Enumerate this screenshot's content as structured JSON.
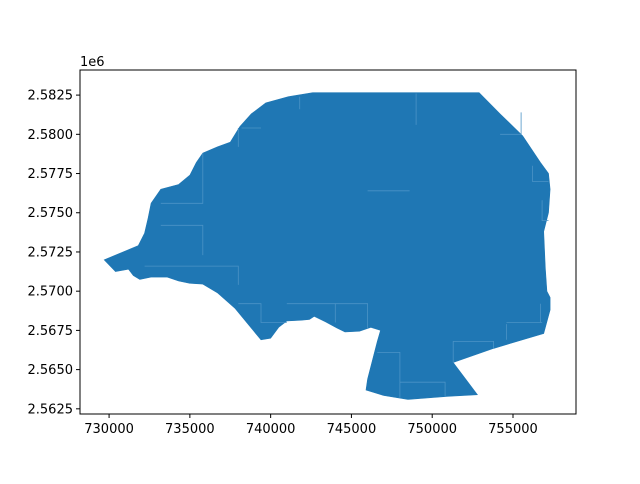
{
  "chart_data": {
    "type": "area",
    "title": "",
    "xlabel": "",
    "ylabel": "",
    "y_offset_label": "1e6",
    "xlim": [
      728200,
      758900
    ],
    "ylim": [
      2562170,
      2584100
    ],
    "xticks": [
      730000,
      735000,
      740000,
      745000,
      750000,
      755000
    ],
    "xtick_labels": [
      "730000",
      "735000",
      "740000",
      "745000",
      "750000",
      "755000"
    ],
    "yticks": [
      2562500,
      2565000,
      2567500,
      2570000,
      2572500,
      2575000,
      2577500,
      2580000,
      2582500
    ],
    "ytick_labels": [
      "2.5625",
      "2.5650",
      "2.5675",
      "2.5700",
      "2.5725",
      "2.5750",
      "2.5775",
      "2.5800",
      "2.5825"
    ],
    "grid": false,
    "fill_color": "#1f77b4",
    "interior_line_color": "#4b93c6",
    "polygon": [
      [
        742600,
        2582650
      ],
      [
        752900,
        2582650
      ],
      [
        754200,
        2581300
      ],
      [
        755600,
        2579900
      ],
      [
        756700,
        2578200
      ],
      [
        757200,
        2577500
      ],
      [
        757300,
        2576500
      ],
      [
        757200,
        2575000
      ],
      [
        756900,
        2573800
      ],
      [
        757000,
        2571500
      ],
      [
        757100,
        2570000
      ],
      [
        757300,
        2569600
      ],
      [
        757300,
        2568800
      ],
      [
        756900,
        2567300
      ],
      [
        753800,
        2566350
      ],
      [
        751300,
        2565450
      ],
      [
        752800,
        2563400
      ],
      [
        751000,
        2563300
      ],
      [
        748500,
        2563100
      ],
      [
        747000,
        2563350
      ],
      [
        745900,
        2563700
      ],
      [
        746000,
        2564400
      ],
      [
        746600,
        2566800
      ],
      [
        746800,
        2567500
      ],
      [
        746200,
        2567700
      ],
      [
        745500,
        2567450
      ],
      [
        744600,
        2567400
      ],
      [
        744100,
        2567650
      ],
      [
        743400,
        2568050
      ],
      [
        742700,
        2568400
      ],
      [
        742400,
        2568200
      ],
      [
        741900,
        2568150
      ],
      [
        741000,
        2568100
      ],
      [
        740500,
        2567700
      ],
      [
        740000,
        2567000
      ],
      [
        739400,
        2566900
      ],
      [
        738600,
        2567900
      ],
      [
        737800,
        2568900
      ],
      [
        736700,
        2569900
      ],
      [
        735800,
        2570450
      ],
      [
        735000,
        2570500
      ],
      [
        734300,
        2570650
      ],
      [
        733600,
        2570900
      ],
      [
        732600,
        2570900
      ],
      [
        731900,
        2570750
      ],
      [
        731500,
        2571000
      ],
      [
        731200,
        2571400
      ],
      [
        730400,
        2571250
      ],
      [
        729700,
        2572000
      ],
      [
        731800,
        2572900
      ],
      [
        732200,
        2573700
      ],
      [
        732400,
        2574600
      ],
      [
        732600,
        2575600
      ],
      [
        733200,
        2576500
      ],
      [
        734300,
        2576800
      ],
      [
        735000,
        2577400
      ],
      [
        735400,
        2578200
      ],
      [
        735800,
        2578800
      ],
      [
        736700,
        2579200
      ],
      [
        737500,
        2579500
      ],
      [
        738100,
        2580500
      ],
      [
        738800,
        2581300
      ],
      [
        739700,
        2582000
      ],
      [
        741100,
        2582400
      ]
    ],
    "interior_lines": [
      [
        [
          735800,
          2578800
        ],
        [
          735800,
          2575600
        ],
        [
          733200,
          2575600
        ]
      ],
      [
        [
          733200,
          2574200
        ],
        [
          735800,
          2574200
        ],
        [
          735800,
          2572300
        ]
      ],
      [
        [
          732200,
          2571600
        ],
        [
          738000,
          2571600
        ],
        [
          738000,
          2570400
        ]
      ],
      [
        [
          738000,
          2569200
        ],
        [
          739400,
          2569200
        ],
        [
          739400,
          2568000
        ],
        [
          741000,
          2568000
        ]
      ],
      [
        [
          741000,
          2569200
        ],
        [
          744000,
          2569200
        ],
        [
          744000,
          2568000
        ]
      ],
      [
        [
          744000,
          2569200
        ],
        [
          746000,
          2569200
        ],
        [
          746000,
          2567600
        ]
      ],
      [
        [
          738000,
          2580400
        ],
        [
          738000,
          2579200
        ]
      ],
      [
        [
          739400,
          2580400
        ],
        [
          738200,
          2580400
        ]
      ],
      [
        [
          741800,
          2582400
        ],
        [
          741800,
          2581600
        ]
      ],
      [
        [
          751300,
          2565450
        ],
        [
          751300,
          2566800
        ],
        [
          753800,
          2566800
        ],
        [
          753800,
          2566350
        ]
      ],
      [
        [
          746600,
          2566100
        ],
        [
          748000,
          2566100
        ],
        [
          748000,
          2563200
        ]
      ],
      [
        [
          748000,
          2564200
        ],
        [
          750800,
          2564200
        ],
        [
          750800,
          2563300
        ]
      ],
      [
        [
          755500,
          2581400
        ],
        [
          755500,
          2580000
        ],
        [
          754200,
          2580000
        ]
      ],
      [
        [
          756200,
          2578000
        ],
        [
          756200,
          2577000
        ],
        [
          757200,
          2577000
        ]
      ],
      [
        [
          756800,
          2575800
        ],
        [
          756800,
          2574500
        ],
        [
          757200,
          2574500
        ]
      ],
      [
        [
          756700,
          2569200
        ],
        [
          756700,
          2568000
        ]
      ],
      [
        [
          754600,
          2568000
        ],
        [
          756800,
          2568000
        ]
      ],
      [
        [
          754600,
          2566900
        ],
        [
          754600,
          2567900
        ]
      ],
      [
        [
          749000,
          2580600
        ],
        [
          749000,
          2582600
        ]
      ],
      [
        [
          746000,
          2576400
        ],
        [
          748600,
          2576400
        ]
      ]
    ]
  }
}
